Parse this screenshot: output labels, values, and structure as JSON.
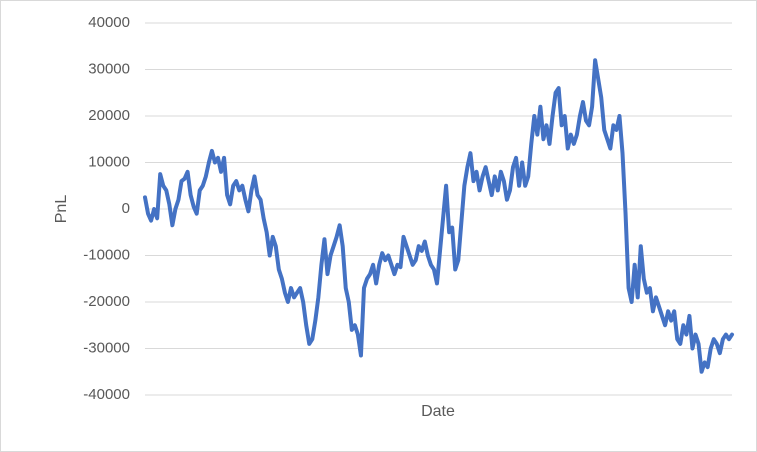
{
  "chart_data": {
    "type": "line",
    "x_label": "Date",
    "y_label": "PnL",
    "color": "#4472c4",
    "grid": true,
    "ylim": [
      -40000,
      40000
    ],
    "yticks": [
      -40000,
      -30000,
      -20000,
      -10000,
      0,
      10000,
      20000,
      30000,
      40000
    ],
    "values": [
      2500,
      -1000,
      -2500,
      0,
      -2000,
      7500,
      5000,
      4000,
      1000,
      -3500,
      0,
      2000,
      6000,
      6500,
      8000,
      3000,
      500,
      -1000,
      4000,
      5000,
      7000,
      10000,
      12500,
      10000,
      11000,
      8000,
      11000,
      3000,
      1000,
      5000,
      6000,
      4000,
      5000,
      2000,
      -500,
      4000,
      7000,
      3000,
      2000,
      -2000,
      -5000,
      -10000,
      -6000,
      -8000,
      -13000,
      -15000,
      -18000,
      -20000,
      -17000,
      -19000,
      -18000,
      -17000,
      -20000,
      -25000,
      -29000,
      -28000,
      -24000,
      -19000,
      -12000,
      -6500,
      -14000,
      -10000,
      -8000,
      -6000,
      -3500,
      -8000,
      -17000,
      -20000,
      -26000,
      -25000,
      -27000,
      -31500,
      -17000,
      -15000,
      -14000,
      -12000,
      -16000,
      -12000,
      -9500,
      -11000,
      -10000,
      -12000,
      -14000,
      -12000,
      -12500,
      -6000,
      -8000,
      -10000,
      -12000,
      -11000,
      -8000,
      -9000,
      -7000,
      -10000,
      -12000,
      -13000,
      -16000,
      -9000,
      -2000,
      5000,
      -5000,
      -4000,
      -13000,
      -11000,
      -3000,
      5000,
      9000,
      12000,
      6000,
      8000,
      4000,
      7000,
      9000,
      6000,
      3000,
      7000,
      4000,
      8000,
      6000,
      2000,
      4000,
      9000,
      11000,
      5000,
      10000,
      5000,
      7000,
      14000,
      20000,
      16000,
      22000,
      15000,
      18000,
      14000,
      20000,
      25000,
      26000,
      18000,
      20000,
      13000,
      16000,
      14000,
      16000,
      20000,
      23000,
      19000,
      18000,
      22000,
      32000,
      28000,
      24000,
      17000,
      15000,
      13000,
      18000,
      17000,
      20000,
      12000,
      -1000,
      -17000,
      -20000,
      -12000,
      -19000,
      -8000,
      -15000,
      -18000,
      -17000,
      -22000,
      -19000,
      -21000,
      -23000,
      -25000,
      -22000,
      -24000,
      -22000,
      -28000,
      -29000,
      -25000,
      -27000,
      -23000,
      -30000,
      -27000,
      -29000,
      -35000,
      -33000,
      -34000,
      -30000,
      -28000,
      -29000,
      -31000,
      -28000,
      -27000,
      -28000,
      -27000
    ]
  }
}
